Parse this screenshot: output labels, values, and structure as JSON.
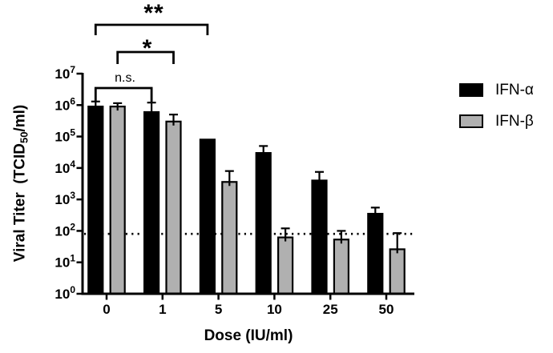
{
  "chart_data": {
    "type": "bar",
    "title": "",
    "xlabel": "Dose (IU/ml)",
    "ylabel": "Viral Titer (TCID50/ml)",
    "ylabel_parts": {
      "prefix": "Viral Titer  (TCID",
      "sub": "50",
      "suffix": "/ml)"
    },
    "categories": [
      "0",
      "1",
      "5",
      "10",
      "25",
      "50"
    ],
    "y_scale": "log10",
    "ylim": [
      1,
      10000000
    ],
    "y_tick_base": "10",
    "y_tick_exponents": [
      0,
      1,
      2,
      3,
      4,
      5,
      6,
      7
    ],
    "grid": "off",
    "legend_position": "right",
    "detection_limit_line": {
      "style": "dotted",
      "value": 80
    },
    "series": [
      {
        "name": "IFN-α",
        "color": "#000000",
        "values": [
          900000,
          600000,
          80000,
          30000,
          4000,
          350
        ],
        "error_bar_tops": [
          1300000,
          1200000,
          null,
          50000,
          7500,
          550
        ]
      },
      {
        "name": "IFN-β",
        "color": "#b0b0b0",
        "values": [
          900000,
          300000,
          3600,
          62,
          53,
          26
        ],
        "error_bar_tops": [
          1150000,
          500000,
          8000,
          120,
          100,
          85
        ]
      }
    ],
    "significance": [
      {
        "label": "n.s.",
        "compare": [
          {
            "series": "IFN-α",
            "dose": "0"
          },
          {
            "series": "IFN-α",
            "dose": "1"
          }
        ]
      },
      {
        "label": "*",
        "compare": [
          {
            "series": "IFN-β",
            "dose": "0"
          },
          {
            "series": "IFN-β",
            "dose": "1"
          }
        ]
      },
      {
        "label": "**",
        "compare": [
          {
            "series": "IFN-α",
            "dose": "0"
          },
          {
            "series": "IFN-α",
            "dose": "5"
          }
        ]
      }
    ]
  },
  "colors": {
    "axis": "#000000",
    "bar_border": "#000000",
    "background": "#ffffff"
  }
}
